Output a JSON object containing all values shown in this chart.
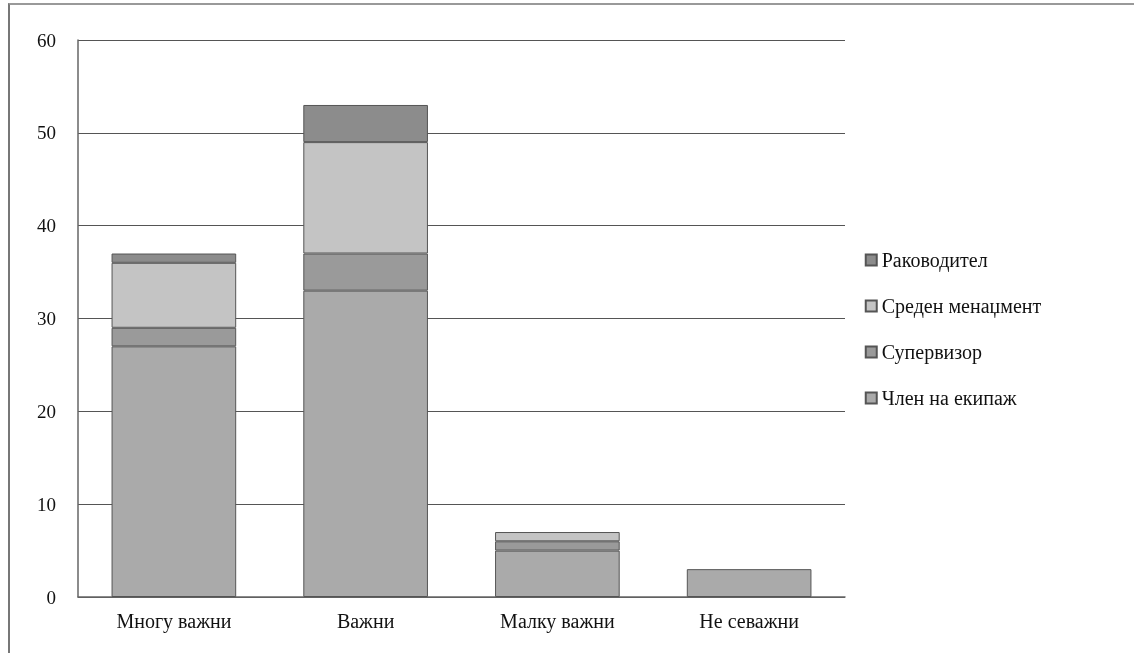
{
  "chart_data": {
    "type": "bar",
    "stacked": true,
    "categories": [
      "Многу важни",
      "Важни",
      "Малку важни",
      "Не севажни"
    ],
    "series": [
      {
        "name": "Член на екипаж",
        "color": "#aaaaaa",
        "values": [
          27,
          33,
          5,
          3
        ]
      },
      {
        "name": "Супервизор",
        "color": "#9a9a9a",
        "values": [
          2,
          4,
          1,
          0
        ]
      },
      {
        "name": "Среден менаџмент",
        "color": "#c4c4c4",
        "values": [
          7,
          12,
          1,
          0
        ]
      },
      {
        "name": "Раководител",
        "color": "#8c8c8c",
        "values": [
          1,
          4,
          0,
          0
        ]
      }
    ],
    "ylim": [
      0,
      60
    ],
    "yticks": [
      0,
      10,
      20,
      30,
      40,
      50,
      60
    ],
    "grid": "y",
    "legend": "right"
  }
}
